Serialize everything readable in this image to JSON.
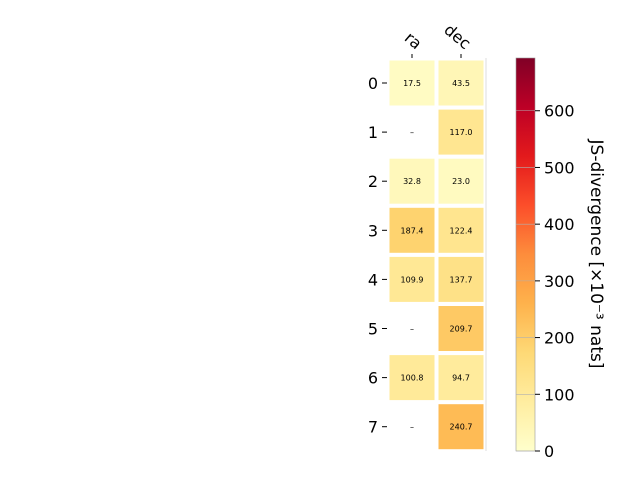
{
  "chart_data": {
    "type": "heatmap",
    "columns": [
      "ra",
      "dec"
    ],
    "rows": [
      "0",
      "1",
      "2",
      "3",
      "4",
      "5",
      "6",
      "7"
    ],
    "values": [
      [
        17.5,
        43.5
      ],
      [
        null,
        117.0
      ],
      [
        32.8,
        23.0
      ],
      [
        187.4,
        122.4
      ],
      [
        109.9,
        137.7
      ],
      [
        null,
        209.7
      ],
      [
        100.8,
        94.7
      ],
      [
        null,
        240.7
      ]
    ],
    "cell_labels": [
      [
        "17.5",
        "43.5"
      ],
      [
        "–",
        "117.0"
      ],
      [
        "32.8",
        "23.0"
      ],
      [
        "187.4",
        "122.4"
      ],
      [
        "109.9",
        "137.7"
      ],
      [
        "–",
        "209.7"
      ],
      [
        "100.8",
        "94.7"
      ],
      [
        "–",
        "240.7"
      ]
    ],
    "colorbar": {
      "label": "JS-divergence [×10⁻³ nats]",
      "range": [
        0,
        693
      ],
      "ticks": [
        0,
        100,
        200,
        300,
        400,
        500,
        600
      ],
      "tick_labels": [
        "0",
        "100",
        "200",
        "300",
        "400",
        "500",
        "600"
      ],
      "colormap": "YlOrRd"
    }
  }
}
